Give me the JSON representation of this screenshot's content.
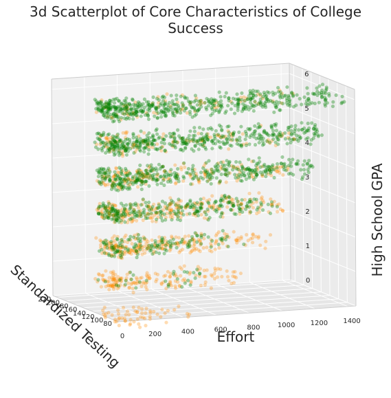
{
  "chart_data": {
    "type": "scatter",
    "projection": "3d",
    "title": "3d Scatterplot of Core Characteristics of College Success",
    "xlabel": "Effort",
    "ylabel": "Standardized Testing",
    "zlabel": "High School GPA",
    "x_ticks": [
      "0",
      "200",
      "400",
      "600",
      "800",
      "1000",
      "1200",
      "1400"
    ],
    "y_ticks": [
      "80",
      "100",
      "120",
      "140",
      "160",
      "180",
      "200",
      "220"
    ],
    "z_ticks": [
      "0",
      "1",
      "2",
      "3",
      "4",
      "5",
      "6"
    ],
    "xlim": [
      0,
      1450
    ],
    "ylim": [
      80,
      230
    ],
    "zlim": [
      0,
      6.3
    ],
    "grid": true,
    "series": [
      {
        "color": "#ff8c00",
        "alpha": 0.3,
        "clusters": [
          {
            "z": 6,
            "effort": [
              0,
              1150
            ],
            "n": 70
          },
          {
            "z": 5,
            "effort": [
              0,
              1100
            ],
            "n": 110
          },
          {
            "z": 4,
            "effort": [
              0,
              1100
            ],
            "n": 180
          },
          {
            "z": 3,
            "effort": [
              0,
              1050
            ],
            "n": 240
          },
          {
            "z": 2,
            "effort": [
              0,
              950
            ],
            "n": 240
          },
          {
            "z": 1,
            "effort": [
              0,
              800
            ],
            "n": 170
          },
          {
            "z": 0,
            "effort": [
              0,
              500
            ],
            "n": 60
          }
        ]
      },
      {
        "color": "#008000",
        "alpha": 0.35,
        "clusters": [
          {
            "z": 6,
            "effort": [
              0,
              1400
            ],
            "n": 520
          },
          {
            "z": 5,
            "effort": [
              0,
              1300
            ],
            "n": 450
          },
          {
            "z": 4,
            "effort": [
              0,
              1250
            ],
            "n": 380
          },
          {
            "z": 3,
            "effort": [
              0,
              1000
            ],
            "n": 260
          },
          {
            "z": 2,
            "effort": [
              0,
              800
            ],
            "n": 130
          },
          {
            "z": 1,
            "effort": [
              0,
              600
            ],
            "n": 30
          }
        ]
      }
    ]
  }
}
